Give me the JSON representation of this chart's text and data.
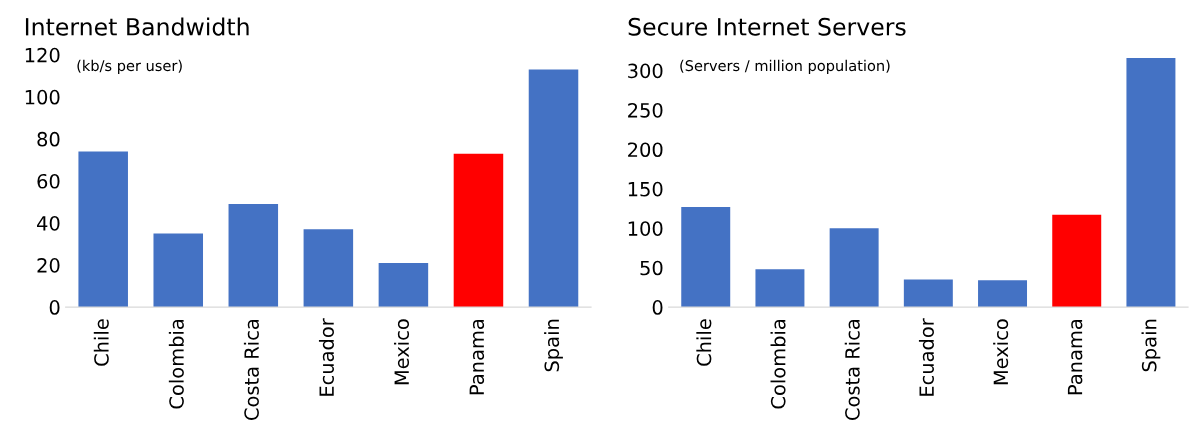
{
  "chart_data": [
    {
      "type": "bar",
      "title": "Internet Bandwidth",
      "annotations": [
        "(kb/s per user)"
      ],
      "categories": [
        "Chile",
        "Colombia",
        "Costa Rica",
        "Ecuador",
        "Mexico",
        "Panama",
        "Spain"
      ],
      "values": [
        74,
        35,
        49,
        37,
        21,
        73,
        113
      ],
      "colors": [
        "#4472c4",
        "#4472c4",
        "#4472c4",
        "#4472c4",
        "#4472c4",
        "#ff0000",
        "#4472c4"
      ],
      "ylim": [
        0,
        120
      ],
      "yticks": [
        0,
        20,
        40,
        60,
        80,
        100,
        120
      ],
      "grid": false
    },
    {
      "type": "bar",
      "title": "Secure Internet Servers",
      "annotations": [
        "(Servers / million population)"
      ],
      "categories": [
        "Chile",
        "Colombia",
        "Costa Rica",
        "Ecuador",
        "Mexico",
        "Panama",
        "Spain"
      ],
      "values": [
        127,
        48,
        100,
        35,
        34,
        117,
        316
      ],
      "colors": [
        "#4472c4",
        "#4472c4",
        "#4472c4",
        "#4472c4",
        "#4472c4",
        "#ff0000",
        "#4472c4"
      ],
      "ylim": [
        0,
        320
      ],
      "yticks": [
        0,
        50,
        100,
        150,
        200,
        250,
        300
      ],
      "grid": false
    }
  ]
}
